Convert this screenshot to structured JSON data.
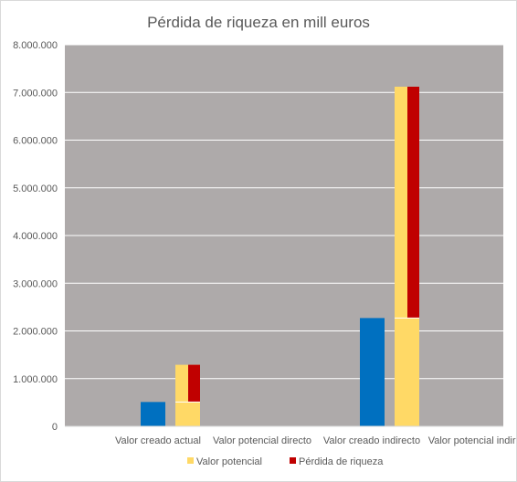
{
  "chart_data": {
    "type": "bar",
    "title": "Pérdida de riqueza en mill euros",
    "xlabel": "",
    "ylabel": "",
    "ylim": [
      0,
      8000000
    ],
    "y_ticks": [
      "0",
      "1.000.000",
      "2.000.000",
      "3.000.000",
      "4.000.000",
      "5.000.000",
      "6.000.000",
      "7.000.000",
      "8.000.000"
    ],
    "categories": [
      "Valor creado actual",
      "Valor potencial directo",
      "Valor creado indirecto",
      "Valor potencial indirecto"
    ],
    "series": [
      {
        "name": "",
        "role": "actual",
        "color": "#0070c0",
        "values": [
          510000,
          0,
          2270000,
          0
        ]
      },
      {
        "name": "Valor potencial",
        "role": "potential",
        "color": "#ffd966",
        "values": [
          0,
          1290000,
          0,
          7120000
        ]
      },
      {
        "name": "Pérdida de riqueza",
        "role": "loss",
        "color": "#c00000",
        "ranges": [
          null,
          [
            510000,
            1290000
          ],
          null,
          [
            2270000,
            7120000
          ]
        ]
      }
    ],
    "plot_background": "#aeaaaa",
    "grid": true,
    "grid_color": "#ffffff",
    "legend": {
      "position": "bottom",
      "entries": [
        {
          "label": "Valor potencial",
          "color": "#ffd966"
        },
        {
          "label": "Pérdida de riqueza",
          "color": "#c00000"
        }
      ]
    }
  }
}
